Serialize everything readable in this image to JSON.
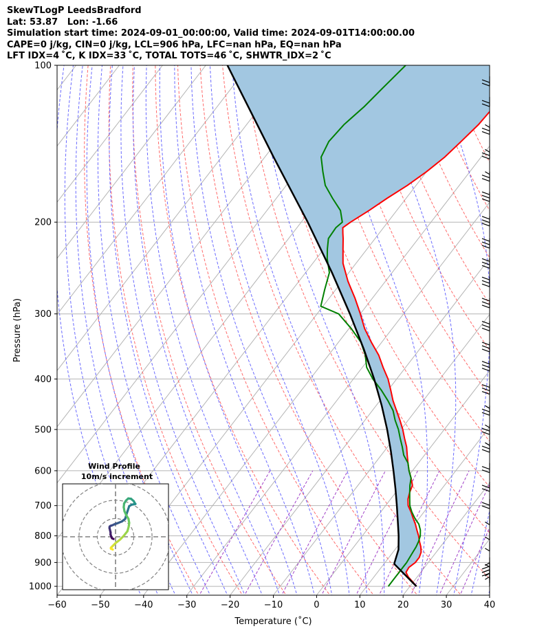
{
  "header": {
    "line1": "SkewTLogP LeedsBradford",
    "line2": "Lat: 53.87   Lon: -1.66",
    "line3": "Simulation start time: 2024-09-01_00:00:00, Valid time: 2024-09-01T14:00:00.00",
    "line4": "CAPE=0 j/kg, CIN=0 j/kg, LCL=906 hPa, LFC=nan hPa, EQ=nan hPa",
    "line5": "LFT IDX=4 ˚C, K IDX=33 ˚C, TOTAL TOTS=46 ˚C, SHWTR_IDX=2 ˚C"
  },
  "chart_data": {
    "type": "skew-t log-p",
    "xlabel": "Temperature (˚C)",
    "ylabel": "Pressure (hPa)",
    "xlim": [
      -60,
      40
    ],
    "ylim": [
      1040,
      100
    ],
    "y_scale": "log",
    "xticks": [
      "−60",
      "−50",
      "−40",
      "−30",
      "−20",
      "−10",
      "0",
      "10",
      "20",
      "30",
      "40"
    ],
    "yticks": [
      "1000",
      "900",
      "800",
      "700",
      "600",
      "500",
      "400",
      "300",
      "200",
      "100"
    ],
    "grid": true,
    "colors": {
      "temperature": "#ff0000",
      "dewpoint": "#008000",
      "parcel": "#000000",
      "shading": "#a2c7e1",
      "dry_adiabats": "#ff6a6a",
      "moist_adiabats": "#6a6aff",
      "mixing_ratio": "#a040c8",
      "isotherms": "#b4b4b4"
    },
    "temperature": {
      "p": [
        1000,
        980,
        960,
        940,
        920,
        900,
        880,
        860,
        840,
        820,
        800,
        780,
        760,
        740,
        720,
        700,
        680,
        660,
        640,
        620,
        600,
        580,
        560,
        540,
        520,
        500,
        480,
        460,
        440,
        420,
        400,
        380,
        360,
        340,
        320,
        300,
        280,
        260,
        240,
        225,
        215,
        210,
        205,
        200,
        190,
        180,
        170,
        160,
        150,
        140,
        130,
        120,
        110,
        100
      ],
      "t": [
        21.5,
        19.8,
        18.0,
        16.6,
        16.4,
        17.0,
        17.0,
        16.5,
        15.5,
        14.2,
        13.0,
        11.6,
        10.2,
        8.6,
        7.0,
        5.2,
        4.0,
        3.2,
        2.6,
        1.0,
        -0.8,
        -2.4,
        -4.0,
        -5.6,
        -7.6,
        -9.6,
        -11.9,
        -14.4,
        -17.0,
        -19.4,
        -22.0,
        -25.2,
        -28.4,
        -32.4,
        -36.4,
        -40.0,
        -44.0,
        -48.6,
        -53.0,
        -55.6,
        -57.4,
        -58.4,
        -59.4,
        -58.6,
        -56.4,
        -54.4,
        -52.0,
        -50.0,
        -48.4,
        -47.4,
        -46.4,
        -46.0,
        -45.6,
        -45.4
      ]
    },
    "dewpoint": {
      "p": [
        1000,
        980,
        960,
        940,
        920,
        900,
        880,
        860,
        840,
        820,
        800,
        780,
        760,
        740,
        720,
        700,
        680,
        660,
        640,
        620,
        600,
        580,
        560,
        540,
        520,
        500,
        480,
        460,
        440,
        420,
        400,
        380,
        360,
        340,
        320,
        300,
        290,
        270,
        250,
        235,
        225,
        215,
        205,
        200,
        190,
        180,
        170,
        160,
        150,
        140,
        130,
        120,
        110,
        100
      ],
      "td": [
        15.0,
        15.0,
        15.0,
        15.0,
        15.0,
        15.0,
        14.8,
        14.6,
        14.4,
        14.0,
        13.4,
        12.4,
        11.0,
        9.0,
        7.2,
        5.6,
        4.4,
        3.2,
        2.0,
        1.0,
        -0.8,
        -2.4,
        -4.8,
        -6.6,
        -8.6,
        -10.6,
        -13.0,
        -15.2,
        -18.2,
        -21.6,
        -25.5,
        -29.0,
        -31.5,
        -34.8,
        -39.5,
        -45.0,
        -50.5,
        -52.5,
        -54.5,
        -57.5,
        -59.2,
        -60.8,
        -61.0,
        -60.5,
        -63.0,
        -67.0,
        -71.0,
        -74.0,
        -77.0,
        -78.0,
        -77.5,
        -76.0,
        -75.0,
        -73.8
      ]
    },
    "parcel": {
      "p": [
        1000,
        906,
        900,
        850,
        800,
        750,
        700,
        650,
        600,
        550,
        500,
        450,
        400,
        350,
        300,
        250,
        200,
        150,
        100
      ],
      "t": [
        21.5,
        12.4,
        12.2,
        10.8,
        8.4,
        5.6,
        2.6,
        -0.7,
        -4.4,
        -8.5,
        -13.2,
        -18.7,
        -25.2,
        -33.0,
        -42.4,
        -53.9,
        -68.5,
        -88.0,
        -115.0
      ]
    },
    "wind_profile_title": "Wind Profile",
    "wind_profile_subtitle": "10m/s increment",
    "wind_profile_rings": [
      10,
      20,
      30
    ],
    "hodograph": {
      "u": [
        0.4,
        -0.4,
        -0.8,
        -1.2,
        -1.2,
        -1.5,
        -1.8,
        -1.7,
        -1.2,
        0.0,
        0.8,
        2.5,
        5.0,
        6.8,
        7.4,
        8.2,
        9.0,
        10.4,
        11.6,
        12.4,
        12.0,
        11.5,
        10.0,
        8.5,
        7.2,
        6.2,
        6.0,
        6.4,
        7.4,
        8.6,
        9.0,
        8.7,
        8.0,
        6.0,
        4.0,
        1.5,
        0.0,
        -1.0,
        -1.0,
        0.0
      ],
      "v": [
        -1.2,
        -0.8,
        0.0,
        1.2,
        2.4,
        3.6,
        4.8,
        5.6,
        6.0,
        6.4,
        6.8,
        7.4,
        8.4,
        9.8,
        12.0,
        14.4,
        16.8,
        17.6,
        17.8,
        18.0,
        18.5,
        19.5,
        20.8,
        21.0,
        19.8,
        18.2,
        16.2,
        14.0,
        11.8,
        9.8,
        7.6,
        5.5,
        3.0,
        0.5,
        -1.5,
        -3.5,
        -5.0,
        -6.0,
        -6.5,
        -7.0
      ]
    },
    "wind_barbs": [
      {
        "p": 1000,
        "u": 3,
        "v": 5
      },
      {
        "p": 985,
        "u": 4,
        "v": 6
      },
      {
        "p": 970,
        "u": 7,
        "v": 6
      },
      {
        "p": 955,
        "u": 8,
        "v": 4
      },
      {
        "p": 940,
        "u": 5,
        "v": 2
      },
      {
        "p": 880,
        "u": 6,
        "v": -2
      },
      {
        "p": 820,
        "u": 4,
        "v": -1
      },
      {
        "p": 780,
        "u": 2,
        "v": -4
      },
      {
        "p": 730,
        "u": 1,
        "v": -6
      },
      {
        "p": 680,
        "u": 1,
        "v": -8
      },
      {
        "p": 630,
        "u": 2,
        "v": -9
      },
      {
        "p": 580,
        "u": 3,
        "v": -11
      },
      {
        "p": 530,
        "u": 4,
        "v": -12
      },
      {
        "p": 490,
        "u": 5,
        "v": -13
      },
      {
        "p": 450,
        "u": 6,
        "v": -15
      },
      {
        "p": 410,
        "u": 6,
        "v": -17
      },
      {
        "p": 370,
        "u": 7,
        "v": -18
      },
      {
        "p": 340,
        "u": 7,
        "v": -18
      },
      {
        "p": 310,
        "u": 8,
        "v": -19
      },
      {
        "p": 280,
        "u": 8,
        "v": -20
      },
      {
        "p": 255,
        "u": 8,
        "v": -21
      },
      {
        "p": 235,
        "u": 7,
        "v": -21
      },
      {
        "p": 215,
        "u": 7,
        "v": -20
      },
      {
        "p": 195,
        "u": 6,
        "v": -19
      },
      {
        "p": 175,
        "u": 5,
        "v": -17
      },
      {
        "p": 160,
        "u": 5,
        "v": -16
      },
      {
        "p": 145,
        "u": 4,
        "v": -15
      },
      {
        "p": 130,
        "u": 4,
        "v": -14
      },
      {
        "p": 115,
        "u": 3,
        "v": -12
      },
      {
        "p": 105,
        "u": 3,
        "v": -10
      }
    ]
  }
}
